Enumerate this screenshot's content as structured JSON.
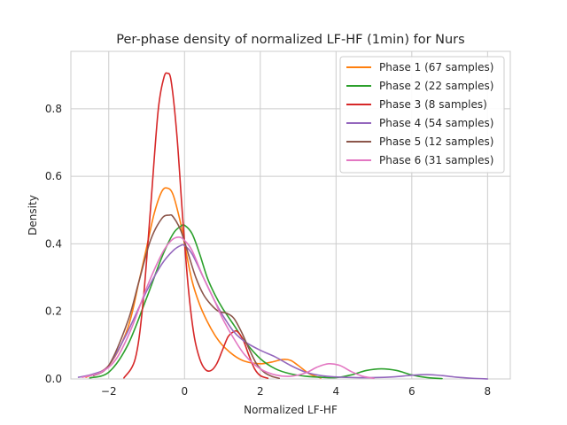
{
  "chart_data": {
    "type": "line",
    "title": "Per-phase density of normalized LF-HF (1min) for Nurs",
    "xlabel": "Normalized LF-HF",
    "ylabel": "Density",
    "xlim": [
      -3.0,
      8.6
    ],
    "ylim": [
      0,
      0.97
    ],
    "x_ticks": [
      -2,
      0,
      2,
      4,
      6,
      8
    ],
    "x_tick_labels": [
      "−2",
      "0",
      "2",
      "4",
      "6",
      "8"
    ],
    "y_ticks": [
      0.0,
      0.2,
      0.4,
      0.6,
      0.8
    ],
    "y_tick_labels": [
      "0.0",
      "0.2",
      "0.4",
      "0.6",
      "0.8"
    ],
    "grid": true,
    "legend_position": "top-right",
    "series": [
      {
        "name": "Phase 1 (67 samples)",
        "color": "#ff7f0e",
        "x": [
          -2.6,
          -2.0,
          -1.5,
          -1.2,
          -1.0,
          -0.8,
          -0.6,
          -0.45,
          -0.3,
          -0.1,
          0.0,
          0.2,
          0.4,
          0.6,
          0.8,
          1.0,
          1.3,
          1.6,
          2.0,
          2.3,
          2.6,
          2.8,
          3.0,
          3.3,
          3.6
        ],
        "y": [
          0.005,
          0.04,
          0.15,
          0.29,
          0.39,
          0.49,
          0.555,
          0.565,
          0.545,
          0.46,
          0.4,
          0.29,
          0.22,
          0.17,
          0.13,
          0.1,
          0.07,
          0.052,
          0.045,
          0.05,
          0.058,
          0.055,
          0.04,
          0.015,
          0.003
        ]
      },
      {
        "name": "Phase 2 (22 samples)",
        "color": "#2ca02c",
        "x": [
          -2.5,
          -2.0,
          -1.5,
          -1.0,
          -0.6,
          -0.3,
          -0.1,
          0.0,
          0.2,
          0.4,
          0.6,
          0.8,
          1.0,
          1.3,
          1.6,
          2.0,
          2.4,
          2.8,
          3.2,
          3.6,
          4.0,
          4.4,
          4.8,
          5.2,
          5.6,
          6.0,
          6.4,
          6.8
        ],
        "y": [
          0.003,
          0.02,
          0.1,
          0.24,
          0.36,
          0.43,
          0.452,
          0.455,
          0.43,
          0.37,
          0.3,
          0.25,
          0.21,
          0.16,
          0.11,
          0.06,
          0.03,
          0.015,
          0.008,
          0.005,
          0.004,
          0.012,
          0.025,
          0.03,
          0.025,
          0.012,
          0.004,
          0.001
        ]
      },
      {
        "name": "Phase 3 (8 samples)",
        "color": "#d62728",
        "x": [
          -1.6,
          -1.3,
          -1.1,
          -0.9,
          -0.7,
          -0.55,
          -0.45,
          -0.35,
          -0.2,
          -0.05,
          0.1,
          0.25,
          0.4,
          0.55,
          0.7,
          0.85,
          1.0,
          1.15,
          1.3,
          1.4,
          1.55,
          1.7,
          1.85,
          2.0,
          2.2
        ],
        "y": [
          0.003,
          0.06,
          0.22,
          0.5,
          0.79,
          0.89,
          0.905,
          0.88,
          0.72,
          0.48,
          0.27,
          0.13,
          0.06,
          0.028,
          0.025,
          0.045,
          0.085,
          0.125,
          0.14,
          0.14,
          0.115,
          0.07,
          0.03,
          0.01,
          0.002
        ]
      },
      {
        "name": "Phase 4 (54 samples)",
        "color": "#9467bd",
        "x": [
          -2.8,
          -2.4,
          -2.0,
          -1.5,
          -1.0,
          -0.6,
          -0.3,
          -0.1,
          0.0,
          0.2,
          0.5,
          0.8,
          1.0,
          1.3,
          1.6,
          2.0,
          2.4,
          2.8,
          3.2,
          3.6,
          4.0,
          4.5,
          5.0,
          5.5,
          6.0,
          6.4,
          6.8,
          7.2,
          7.6,
          8.0
        ],
        "y": [
          0.005,
          0.015,
          0.04,
          0.14,
          0.26,
          0.34,
          0.38,
          0.395,
          0.395,
          0.37,
          0.3,
          0.23,
          0.19,
          0.14,
          0.11,
          0.085,
          0.065,
          0.04,
          0.02,
          0.01,
          0.006,
          0.004,
          0.004,
          0.006,
          0.011,
          0.013,
          0.01,
          0.005,
          0.002,
          0.0
        ]
      },
      {
        "name": "Phase 5 (12 samples)",
        "color": "#8c564b",
        "x": [
          -2.4,
          -2.0,
          -1.5,
          -1.2,
          -0.9,
          -0.6,
          -0.4,
          -0.3,
          -0.1,
          0.1,
          0.3,
          0.5,
          0.7,
          0.9,
          1.1,
          1.3,
          1.5,
          1.7,
          1.9,
          2.1,
          2.3,
          2.5
        ],
        "y": [
          0.01,
          0.04,
          0.17,
          0.29,
          0.41,
          0.475,
          0.485,
          0.48,
          0.44,
          0.37,
          0.3,
          0.25,
          0.22,
          0.2,
          0.195,
          0.18,
          0.14,
          0.09,
          0.045,
          0.02,
          0.008,
          0.002
        ]
      },
      {
        "name": "Phase 6 (31 samples)",
        "color": "#e377c2",
        "x": [
          -2.7,
          -2.2,
          -1.8,
          -1.4,
          -1.0,
          -0.6,
          -0.35,
          -0.15,
          0.0,
          0.2,
          0.5,
          0.8,
          1.0,
          1.3,
          1.6,
          2.0,
          2.4,
          2.8,
          3.2,
          3.5,
          3.8,
          4.1,
          4.4,
          4.7,
          5.0
        ],
        "y": [
          0.005,
          0.02,
          0.06,
          0.15,
          0.27,
          0.37,
          0.41,
          0.42,
          0.41,
          0.38,
          0.3,
          0.23,
          0.18,
          0.12,
          0.07,
          0.03,
          0.012,
          0.008,
          0.018,
          0.035,
          0.045,
          0.04,
          0.022,
          0.008,
          0.002
        ]
      }
    ]
  }
}
